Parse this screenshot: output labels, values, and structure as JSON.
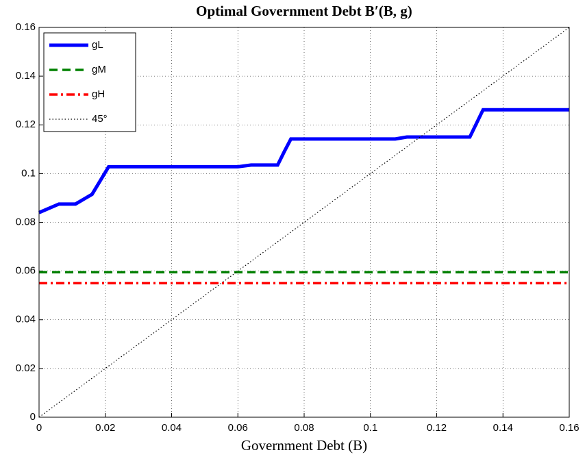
{
  "chart_data": {
    "type": "line",
    "title": "Optimal Government Debt B′(B, g)",
    "x_label": "Government Debt (B)",
    "xlim": [
      0,
      0.16
    ],
    "xticks": [
      0,
      0.02,
      0.04,
      0.06,
      0.08,
      0.1,
      0.12,
      0.14,
      0.16
    ],
    "ylim": [
      0,
      0.16
    ],
    "yticks": [
      0,
      0.02,
      0.04,
      0.06,
      0.08,
      0.1,
      0.12,
      0.14,
      0.16
    ],
    "grid": true,
    "legend": "upper left",
    "series": [
      {
        "name": "gL",
        "color": "#0000ff",
        "style": "solid",
        "x": [
          0,
          0.006,
          0.011,
          0.016,
          0.018,
          0.021,
          0.06,
          0.064,
          0.072,
          0.074,
          0.076,
          0.1075,
          0.111,
          0.13,
          0.134,
          0.16
        ],
        "values": [
          0.084,
          0.0875,
          0.0875,
          0.0915,
          0.096,
          0.1028,
          0.1028,
          0.1035,
          0.1035,
          0.109,
          0.1142,
          0.1142,
          0.115,
          0.115,
          0.1262,
          0.1262
        ]
      },
      {
        "name": "gM",
        "color": "#008000",
        "style": "dashed",
        "x": [
          0,
          0.16
        ],
        "values": [
          0.0595,
          0.0595
        ]
      },
      {
        "name": "gH",
        "color": "#ff0000",
        "style": "dashdot",
        "x": [
          0,
          0.16
        ],
        "values": [
          0.055,
          0.055
        ]
      },
      {
        "name": "45°",
        "color": "#000000",
        "style": "dotted",
        "x": [
          0,
          0.16
        ],
        "values": [
          0,
          0.16
        ]
      }
    ]
  }
}
